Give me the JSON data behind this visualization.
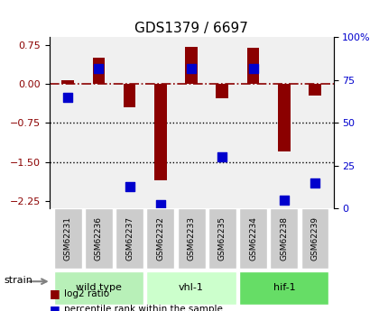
{
  "title": "GDS1379 / 6697",
  "samples": [
    "GSM62231",
    "GSM62236",
    "GSM62237",
    "GSM62232",
    "GSM62233",
    "GSM62235",
    "GSM62234",
    "GSM62238",
    "GSM62239"
  ],
  "log2_ratios": [
    0.07,
    0.5,
    -0.45,
    -1.85,
    0.72,
    -0.28,
    0.7,
    -1.3,
    -0.22
  ],
  "percentile_ranks": [
    65,
    82,
    13,
    2,
    82,
    30,
    82,
    5,
    15
  ],
  "groups": [
    {
      "label": "wild type",
      "indices": [
        0,
        1,
        2
      ],
      "color": "#b8f0b8"
    },
    {
      "label": "vhl-1",
      "indices": [
        3,
        4,
        5
      ],
      "color": "#ccffcc"
    },
    {
      "label": "hif-1",
      "indices": [
        6,
        7,
        8
      ],
      "color": "#66dd66"
    }
  ],
  "ylim_left": [
    -2.4,
    0.9
  ],
  "ylim_right": [
    0,
    100
  ],
  "yticks_left": [
    -2.25,
    -1.5,
    -0.75,
    0.0,
    0.75
  ],
  "yticks_right": [
    0,
    25,
    50,
    75,
    100
  ],
  "hline_y": 0.0,
  "dotted_lines": [
    -0.75,
    -1.5
  ],
  "bar_color": "#8b0000",
  "dot_color": "#0000cd",
  "bar_width": 0.4,
  "dot_size": 60,
  "background_color": "#ffffff",
  "plot_bg_color": "#f0f0f0",
  "legend_log2_label": "log2 ratio",
  "legend_pct_label": "percentile rank within the sample",
  "strain_label": "strain"
}
